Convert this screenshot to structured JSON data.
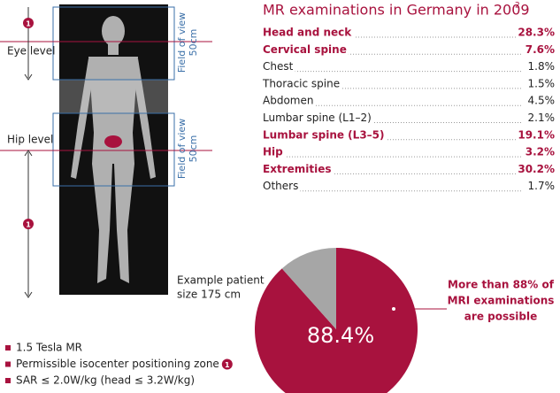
{
  "figure": {
    "eye_label": "Eye level",
    "hip_label": "Hip level",
    "fov_label": [
      "Field of view",
      "50cm"
    ],
    "marker": "1",
    "patient_note": [
      "Example patient",
      "size 175 cm"
    ]
  },
  "table": {
    "title": "MR examinations in Germany in 2009",
    "title_note": "2",
    "rows": [
      {
        "label": "Head and neck",
        "value": "28.3%",
        "highlight": true
      },
      {
        "label": "Cervical spine",
        "value": "7.6%",
        "highlight": true
      },
      {
        "label": "Chest",
        "value": "1.8%",
        "highlight": false
      },
      {
        "label": "Thoracic spine",
        "value": "1.5%",
        "highlight": false
      },
      {
        "label": "Abdomen",
        "value": "4.5%",
        "highlight": false
      },
      {
        "label": "Lumbar spine (L1–2)",
        "value": "2.1%",
        "highlight": false
      },
      {
        "label": "Lumbar spine (L3–5)",
        "value": "19.1%",
        "highlight": true
      },
      {
        "label": "Hip",
        "value": "3.2%",
        "highlight": true
      },
      {
        "label": "Extremities",
        "value": "30.2%",
        "highlight": true
      },
      {
        "label": "Others",
        "value": "1.7%",
        "highlight": false
      }
    ]
  },
  "chart_data": {
    "type": "pie",
    "values": [
      88.4,
      11.6
    ],
    "value_labels": [
      "88.4%",
      null
    ],
    "colors": [
      "#a8123e",
      "#a6a6a6"
    ],
    "annotation": [
      "More than 88% of",
      "MRI examinations",
      "are possible"
    ]
  },
  "legend": [
    "1.5 Tesla MR",
    "Permissible isocenter positioning zone",
    "SAR ≤ 2.0W/kg (head ≤ 3.2W/kg)"
  ]
}
